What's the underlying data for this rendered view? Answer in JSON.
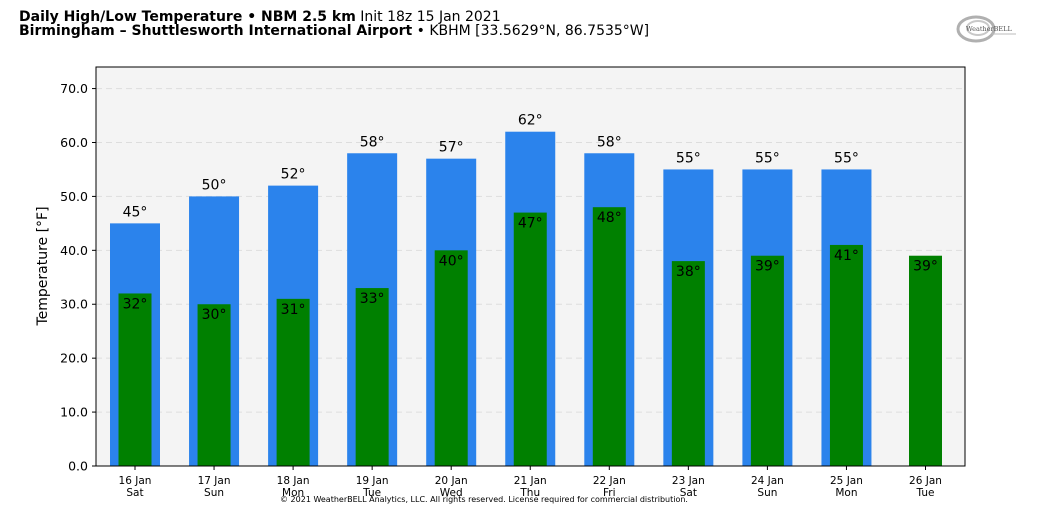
{
  "header": {
    "title_bold": "Daily High/Low Temperature • NBM 2.5 km",
    "title_init": "Init 18z 15 Jan 2021",
    "location_bold": "Birmingham – Shuttlesworth International Airport",
    "location_detail": "• KBHM [33.5629°N, 86.7535°W]"
  },
  "logo": {
    "text": "WeatherBELL",
    "icon": "weatherbell-logo"
  },
  "footer": {
    "copyright": "© 2021 WeatherBELL Analytics, LLC. All rights reserved. License required for commercial distribution."
  },
  "colors": {
    "high": "#2b83ec",
    "low": "#008000",
    "plot_bg": "#f4f4f4",
    "grid": "#dddddd"
  },
  "chart_data": {
    "type": "bar",
    "ylabel": "Temperature [°F]",
    "ylim": [
      0,
      74
    ],
    "yticks": [
      0.0,
      10.0,
      20.0,
      30.0,
      40.0,
      50.0,
      60.0,
      70.0
    ],
    "ytick_labels": [
      "0.0",
      "10.0",
      "20.0",
      "30.0",
      "40.0",
      "50.0",
      "60.0",
      "70.0"
    ],
    "grid": true,
    "categories": [
      "16 Jan",
      "17 Jan",
      "18 Jan",
      "19 Jan",
      "20 Jan",
      "21 Jan",
      "22 Jan",
      "23 Jan",
      "24 Jan",
      "25 Jan",
      "26 Jan"
    ],
    "weekdays": [
      "Sat",
      "Sun",
      "Mon",
      "Tue",
      "Wed",
      "Thu",
      "Fri",
      "Sat",
      "Sun",
      "Mon",
      "Tue"
    ],
    "series": [
      {
        "values": [
          45,
          50,
          52,
          58,
          57,
          62,
          58,
          55,
          55,
          55,
          null
        ],
        "labels": [
          "45°",
          "50°",
          "52°",
          "58°",
          "57°",
          "62°",
          "58°",
          "55°",
          "55°",
          "55°",
          ""
        ]
      },
      {
        "values": [
          32,
          30,
          31,
          33,
          40,
          47,
          48,
          38,
          39,
          41,
          39
        ],
        "labels": [
          "32°",
          "30°",
          "31°",
          "33°",
          "40°",
          "47°",
          "48°",
          "38°",
          "39°",
          "41°",
          "39°"
        ]
      }
    ]
  }
}
